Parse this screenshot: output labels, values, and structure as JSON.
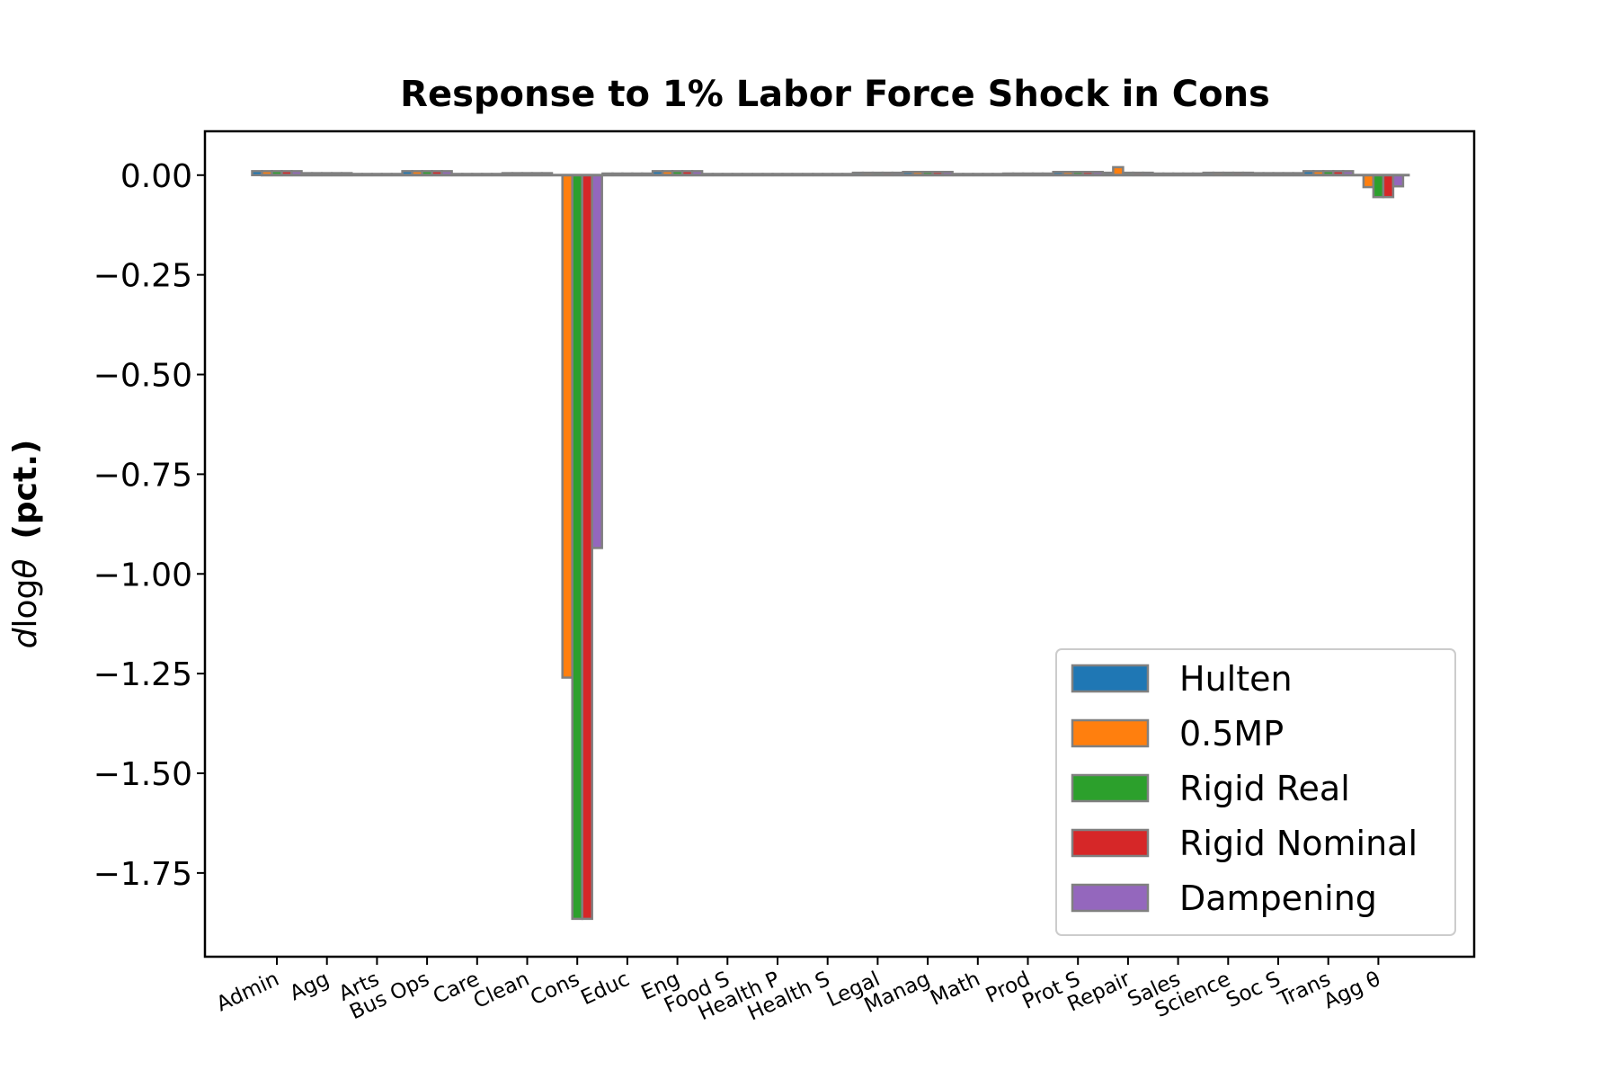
{
  "chart_data": {
    "type": "bar",
    "title": "Response to 1% Labor Force Shock in Cons",
    "ylabel_italic": "d",
    "ylabel_log": "log",
    "ylabel_theta": "θ",
    "ylabel_unit": "(pct.)",
    "xlabel": "",
    "ylim": [
      -1.96,
      0.11
    ],
    "yticks": [
      0.0,
      -0.25,
      -0.5,
      -0.75,
      -1.0,
      -1.25,
      -1.5,
      -1.75
    ],
    "ytick_labels": [
      "0.00",
      "−0.25",
      "−0.50",
      "−0.75",
      "−1.00",
      "−1.25",
      "−1.50",
      "−1.75"
    ],
    "categories": [
      "Admin",
      "Agg",
      "Arts",
      "Bus Ops",
      "Care",
      "Clean",
      "Cons",
      "Educ",
      "Eng",
      "Food S",
      "Health P",
      "Health S",
      "Legal",
      "Manag",
      "Math",
      "Prod",
      "Prot S",
      "Repair",
      "Sales",
      "Science",
      "Soc S",
      "Trans",
      "Agg θ"
    ],
    "series": [
      {
        "name": "Hulten",
        "color": "#1f77b4",
        "values": [
          0.01,
          0.005,
          0.003,
          0.01,
          0.003,
          0.005,
          0,
          0.004,
          0.01,
          0.003,
          0.003,
          0.003,
          0.006,
          0.008,
          0.003,
          0.004,
          0.008,
          0.006,
          0.004,
          0.006,
          0.005,
          0.01,
          0
        ]
      },
      {
        "name": "0.5MP",
        "color": "#ff7f0e",
        "values": [
          0.01,
          0.005,
          0.003,
          0.01,
          0.003,
          0.005,
          -1.26,
          0.004,
          0.01,
          0.003,
          0.003,
          0.003,
          0.006,
          0.008,
          0.003,
          0.004,
          0.008,
          0.02,
          0.004,
          0.006,
          0.005,
          0.01,
          -0.03
        ]
      },
      {
        "name": "Rigid Real",
        "color": "#2ca02c",
        "values": [
          0.01,
          0.005,
          0.003,
          0.01,
          0.003,
          0.005,
          -1.865,
          0.004,
          0.01,
          0.003,
          0.003,
          0.003,
          0.006,
          0.008,
          0.003,
          0.004,
          0.008,
          0.006,
          0.004,
          0.006,
          0.005,
          0.01,
          -0.055
        ]
      },
      {
        "name": "Rigid Nominal",
        "color": "#d62728",
        "values": [
          0.01,
          0.005,
          0.003,
          0.01,
          0.003,
          0.005,
          -1.865,
          0.004,
          0.01,
          0.003,
          0.003,
          0.003,
          0.006,
          0.008,
          0.003,
          0.004,
          0.008,
          0.006,
          0.004,
          0.006,
          0.005,
          0.01,
          -0.055
        ]
      },
      {
        "name": "Dampening",
        "color": "#9467bd",
        "values": [
          0.01,
          0.005,
          0.003,
          0.01,
          0.003,
          0.005,
          -0.935,
          0.004,
          0.01,
          0.003,
          0.003,
          0.003,
          0.006,
          0.008,
          0.003,
          0.004,
          0.008,
          0.006,
          0.004,
          0.006,
          0.005,
          0.01,
          -0.028
        ]
      }
    ],
    "bar_edge_color": "#808080",
    "grid": false,
    "legend_position": "lower-right"
  }
}
